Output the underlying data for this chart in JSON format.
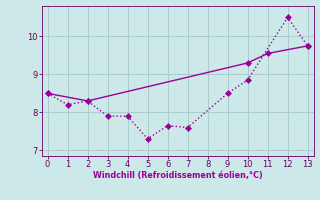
{
  "line1_x": [
    0,
    1,
    2,
    3,
    4,
    5,
    6,
    7,
    9,
    10,
    12,
    13
  ],
  "line1_y": [
    8.5,
    8.2,
    8.3,
    7.9,
    7.9,
    7.3,
    7.65,
    7.6,
    8.5,
    8.85,
    10.5,
    9.75
  ],
  "line2_x": [
    0,
    2,
    10,
    11,
    13
  ],
  "line2_y": [
    8.5,
    8.3,
    9.3,
    9.55,
    9.75
  ],
  "xlim": [
    -0.3,
    13.3
  ],
  "ylim": [
    6.85,
    10.8
  ],
  "yticks": [
    7,
    8,
    9,
    10
  ],
  "xticks": [
    0,
    1,
    2,
    3,
    4,
    5,
    6,
    7,
    8,
    9,
    10,
    11,
    12,
    13
  ],
  "xlabel": "Windchill (Refroidissement éolien,°C)",
  "line_color": "#990099",
  "bg_color": "#cce8e8",
  "grid_color": "#aacccc",
  "xlabel_color": "#990099",
  "tick_color": "#660066",
  "markersize": 3,
  "linewidth": 1.0
}
